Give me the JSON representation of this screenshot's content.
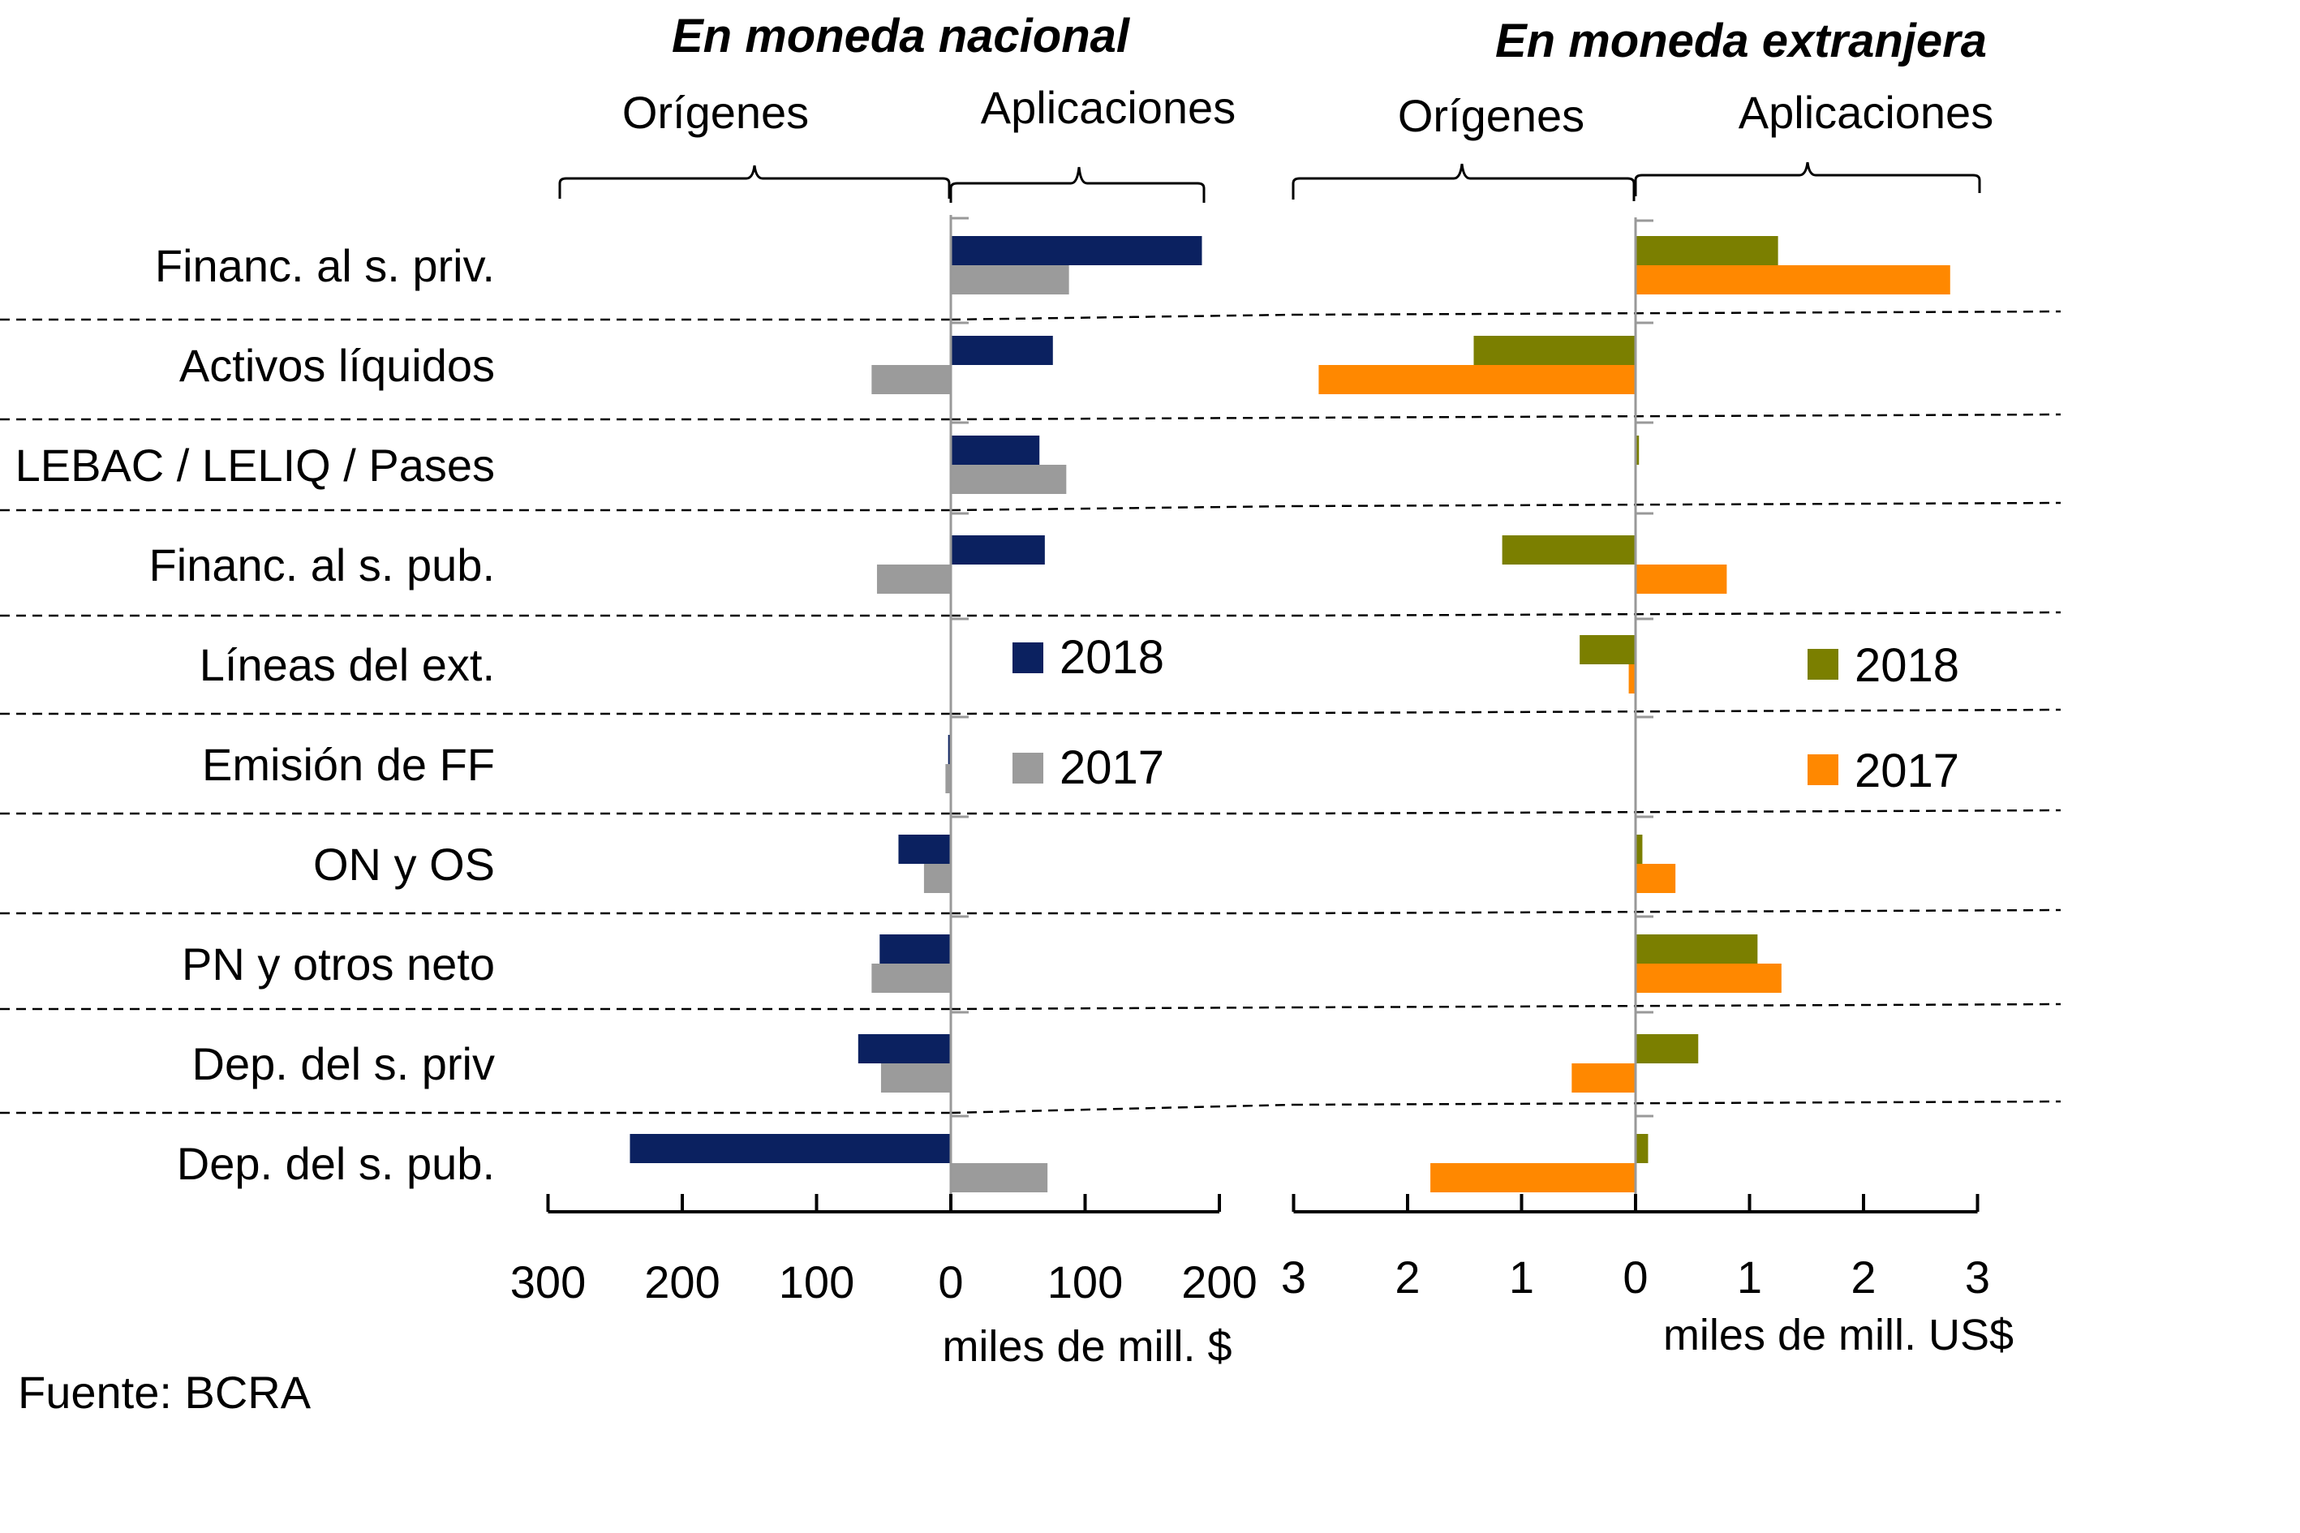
{
  "chart_data": [
    {
      "type": "bar",
      "orientation": "horizontal",
      "title": "En moneda nacional",
      "section_labels": {
        "left": "Orígenes",
        "right": "Aplicaciones"
      },
      "xlabel": "miles de mill. $",
      "xlim": [
        -300,
        200
      ],
      "xticks": [
        -300,
        -200,
        -100,
        0,
        100,
        200
      ],
      "xtick_labels": [
        "300",
        "200",
        "100",
        "0",
        "100",
        "200"
      ],
      "categories": [
        "Financ. al s. priv.",
        "Activos líquidos",
        "LEBAC / LELIQ / Pases",
        "Financ. al s. pub.",
        "Líneas del ext.",
        "Emisión de FF",
        "ON y OS",
        "PN y otros neto",
        "Dep. del s. priv",
        "Dep. del s. pub."
      ],
      "series": [
        {
          "name": "2018",
          "color": "#0b2160",
          "values": [
            187,
            76,
            66,
            70,
            0,
            -2,
            -39,
            -53,
            -69,
            -239
          ]
        },
        {
          "name": "2017",
          "color": "#9b9b9b",
          "values": [
            88,
            -59,
            86,
            -55,
            0,
            -4,
            -20,
            -59,
            -52,
            72
          ]
        }
      ],
      "legend": [
        "2018",
        "2017"
      ],
      "legend_position": "center-right",
      "grid": false
    },
    {
      "type": "bar",
      "orientation": "horizontal",
      "title": "En moneda extranjera",
      "section_labels": {
        "left": "Orígenes",
        "right": "Aplicaciones"
      },
      "xlabel": "miles de mill. US$",
      "xlim": [
        -3,
        3
      ],
      "xticks": [
        -3,
        -2,
        -1,
        0,
        1,
        2,
        3
      ],
      "xtick_labels": [
        "3",
        "2",
        "1",
        "0",
        "1",
        "2",
        "3"
      ],
      "categories": [
        "Financ. al s. priv.",
        "Activos líquidos",
        "LEBAC / LELIQ / Pases",
        "Financ. al s. pub.",
        "Líneas del ext.",
        "Emisión de FF",
        "ON y OS",
        "PN y otros neto",
        "Dep. del s. priv",
        "Dep. del s. pub."
      ],
      "series": [
        {
          "name": "2018",
          "color": "#7b7f00",
          "values": [
            1.25,
            -1.42,
            0.03,
            -1.17,
            -0.49,
            0,
            0.06,
            1.07,
            0.55,
            0.11
          ]
        },
        {
          "name": "2017",
          "color": "#ff8800",
          "values": [
            2.76,
            -2.78,
            0,
            0.8,
            -0.06,
            0,
            0.35,
            1.28,
            -0.56,
            -1.8
          ]
        }
      ],
      "legend": [
        "2018",
        "2017"
      ],
      "legend_position": "center-right",
      "grid": false
    }
  ],
  "source": "Fuente:  BCRA"
}
